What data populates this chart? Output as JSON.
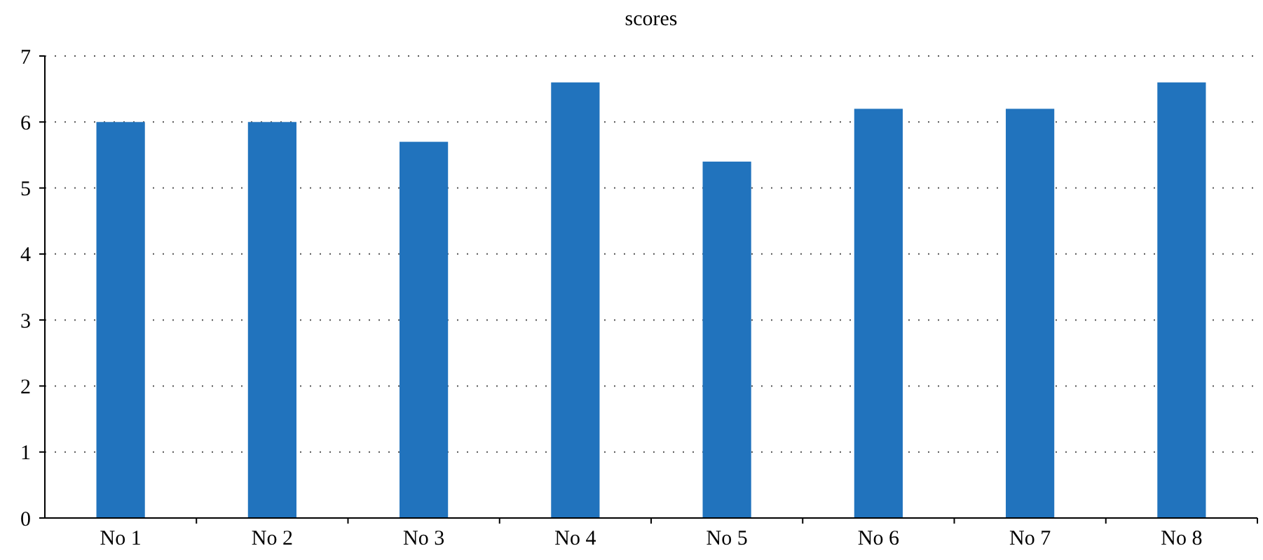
{
  "chart_data": {
    "type": "bar",
    "title": "scores",
    "categories": [
      "No 1",
      "No 2",
      "No 3",
      "No 4",
      "No 5",
      "No 6",
      "No 7",
      "No 8"
    ],
    "values": [
      6.0,
      6.0,
      5.7,
      6.6,
      5.4,
      6.2,
      6.2,
      6.6
    ],
    "color": "#2173bd",
    "ylim": [
      0,
      7
    ],
    "yticks": [
      0,
      1,
      2,
      3,
      4,
      5,
      6,
      7
    ],
    "grid": "y"
  }
}
